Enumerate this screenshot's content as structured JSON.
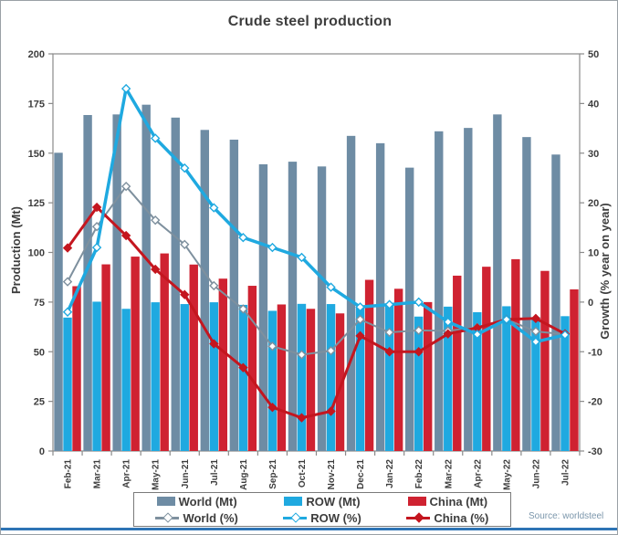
{
  "window": {
    "title": "Crude steel production",
    "source_label": "Source: worldsteel"
  },
  "axes": {
    "left_title": "Production (Mt)",
    "right_title": "Growth (% year on year)",
    "left_ticks": [
      0,
      25,
      50,
      75,
      100,
      125,
      150,
      175,
      200
    ],
    "right_ticks": [
      -30,
      -20,
      -10,
      0,
      10,
      20,
      30,
      40,
      50
    ]
  },
  "chart_data": {
    "type": "bar+line combo",
    "title": "Crude steel production",
    "grid": false,
    "legend_position": "bottom",
    "categories": [
      "Feb-21",
      "Mar-21",
      "Apr-21",
      "May-21",
      "Jun-21",
      "Jul-21",
      "Aug-21",
      "Sep-21",
      "Oct-21",
      "Nov-21",
      "Dec-21",
      "Jan-22",
      "Feb-22",
      "Mar-22",
      "Apr-22",
      "May-22",
      "Jun-22",
      "Jul-22"
    ],
    "left_axis": {
      "label": "Production (Mt)",
      "min": 0,
      "max": 200,
      "tick_step": 25
    },
    "right_axis": {
      "label": "Growth (% year on year)",
      "min": -30,
      "max": 50,
      "tick_step": 10
    },
    "bar_series": [
      {
        "name": "World (Mt)",
        "axis": "left",
        "color": "#6e8ca4",
        "values": [
          150.2,
          169.2,
          169.5,
          174.4,
          167.9,
          161.7,
          156.8,
          144.4,
          145.7,
          143.3,
          158.7,
          155.0,
          142.7,
          161.0,
          162.7,
          169.5,
          158.1,
          149.3
        ]
      },
      {
        "name": "ROW (Mt)",
        "axis": "left",
        "color": "#1fa9e0",
        "values": [
          67.2,
          75.2,
          71.6,
          74.9,
          74.0,
          74.9,
          73.6,
          70.6,
          74.1,
          74.0,
          72.5,
          73.3,
          67.7,
          72.7,
          69.9,
          72.9,
          67.4,
          67.9
        ]
      },
      {
        "name": "China (Mt)",
        "axis": "left",
        "color": "#cf2231",
        "values": [
          83.0,
          94.0,
          97.9,
          99.5,
          93.9,
          86.8,
          83.2,
          73.8,
          71.6,
          69.3,
          86.2,
          81.7,
          75.0,
          88.3,
          92.8,
          96.6,
          90.7,
          81.4
        ]
      }
    ],
    "line_series": [
      {
        "name": "World (%)",
        "axis": "right",
        "color": "#7e909e",
        "marker": "open-diamond",
        "stroke_width": 2,
        "values": [
          4.1,
          15.2,
          23.3,
          16.5,
          11.6,
          3.3,
          -1.4,
          -8.9,
          -10.6,
          -9.8,
          -3.5,
          -6.1,
          -5.7,
          -5.8,
          -5.1,
          -3.5,
          -5.9,
          -6.5
        ]
      },
      {
        "name": "ROW (%)",
        "axis": "right",
        "color": "#1fa9e0",
        "marker": "open-diamond",
        "stroke_width": 3.5,
        "values": [
          -2,
          11,
          43,
          33,
          27,
          19,
          13,
          11,
          9,
          3,
          -1,
          -0.5,
          0,
          -4,
          -6.5,
          -3.5,
          -8,
          -6.6
        ]
      },
      {
        "name": "China (%)",
        "axis": "right",
        "color": "#c4161f",
        "marker": "solid-diamond",
        "stroke_width": 3,
        "values": [
          10.9,
          19.1,
          13.4,
          6.6,
          1.5,
          -8.4,
          -13.2,
          -21.2,
          -23.3,
          -22.0,
          -6.8,
          -10.0,
          -10.0,
          -6.4,
          -5.2,
          -3.5,
          -3.3,
          -6.4
        ]
      }
    ]
  },
  "colors": {
    "text": "#3d3d3d",
    "axis_line": "#8a8a8a",
    "bottom_accent": "#2e74b5",
    "source_text": "#7b96ab"
  }
}
